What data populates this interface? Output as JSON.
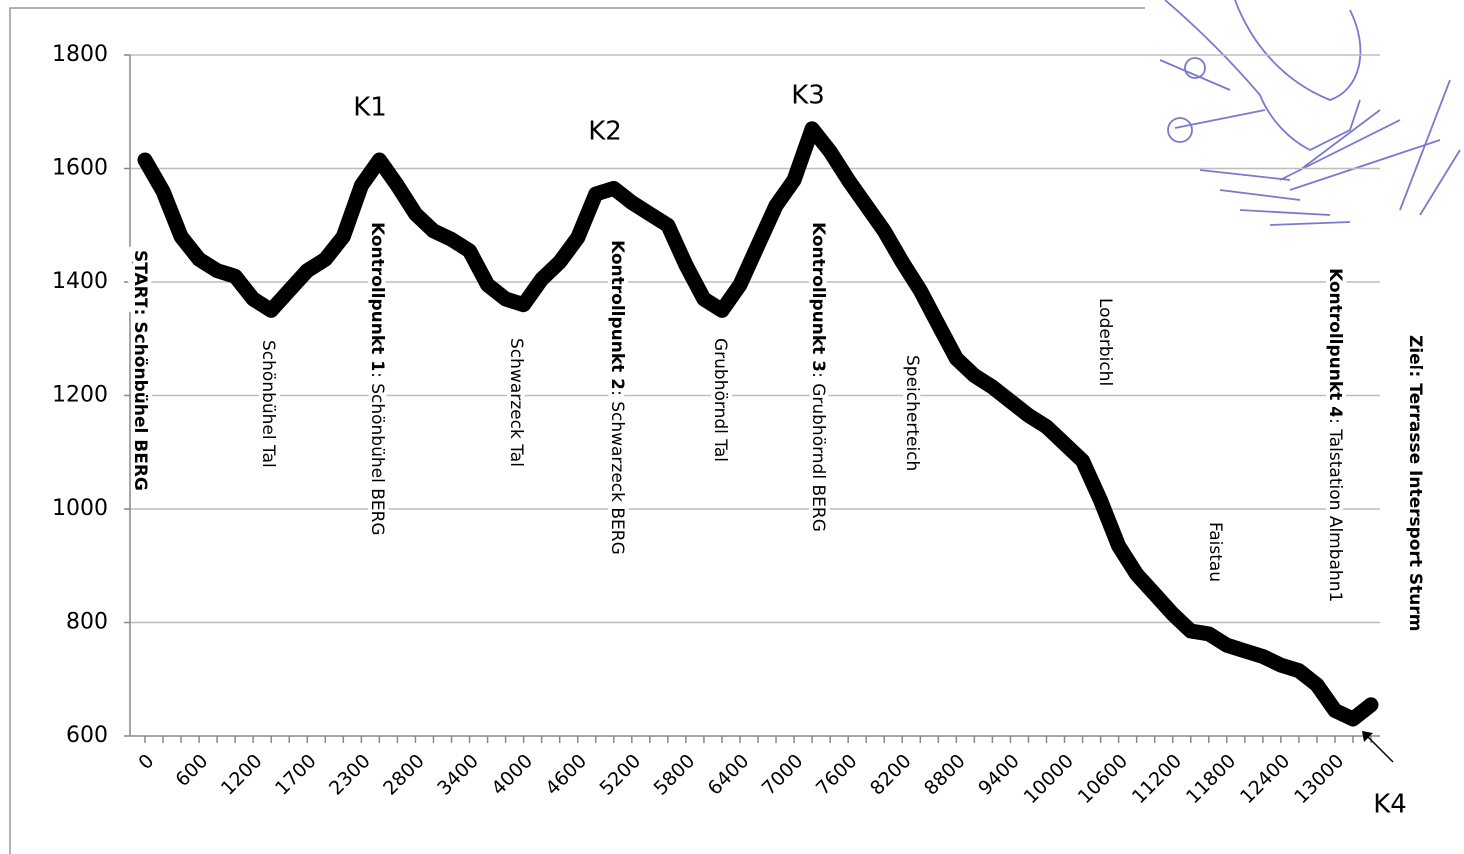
{
  "chart_data": {
    "type": "line",
    "categories": [
      "0",
      null,
      null,
      "600",
      null,
      null,
      "1200",
      null,
      null,
      "1700",
      null,
      null,
      "2300",
      null,
      null,
      "2800",
      null,
      null,
      "3400",
      null,
      null,
      "4000",
      null,
      null,
      "4600",
      null,
      null,
      "5200",
      null,
      null,
      "5800",
      null,
      null,
      "6400",
      null,
      null,
      "7000",
      null,
      null,
      "7600",
      null,
      null,
      "8200",
      null,
      null,
      "8800",
      null,
      null,
      "9400",
      null,
      null,
      "10000",
      null,
      null,
      "10600",
      null,
      null,
      "11200",
      null,
      null,
      "11800",
      null,
      null,
      "12400",
      null,
      null,
      "13000",
      null,
      null
    ],
    "series": [
      {
        "color": "#000000",
        "values": [
          1615,
          1560,
          1480,
          1440,
          1420,
          1410,
          1370,
          1350,
          1385,
          1420,
          1440,
          1480,
          1570,
          1615,
          1570,
          1520,
          1490,
          1475,
          1455,
          1395,
          1370,
          1360,
          1405,
          1435,
          1478,
          1555,
          1565,
          1540,
          1520,
          1500,
          1430,
          1370,
          1350,
          1395,
          1465,
          1535,
          1580,
          1670,
          1630,
          1580,
          1535,
          1490,
          1435,
          1385,
          1325,
          1265,
          1235,
          1215,
          1190,
          1165,
          1145,
          1115,
          1085,
          1015,
          935,
          885,
          850,
          815,
          785,
          780,
          760,
          750,
          740,
          725,
          715,
          690,
          645,
          630,
          655
        ]
      }
    ],
    "ylim": [
      600,
      1800
    ],
    "yticks": [
      600,
      800,
      1000,
      1200,
      1400,
      1600,
      1800
    ],
    "grid": true,
    "checkpoints": [
      "K1",
      "K2",
      "K3",
      "K4"
    ],
    "annotations": [
      {
        "lead": "START",
        "text": ": Schönbühel BERG"
      },
      {
        "text": "Schönbühel Tal"
      },
      {
        "lead": "Kontrollpunkt 1",
        "text": ": Schönbühel BERG"
      },
      {
        "text": "Schwarzeck Tal"
      },
      {
        "lead": "Kontrollpunkt 2",
        "text": ": Schwarzeck BERG"
      },
      {
        "text": "Grubhörndl Tal"
      },
      {
        "lead": "Kontrollpunkt 3",
        "text": ": Grubhörndl BERG"
      },
      {
        "text": "Speicherteich"
      },
      {
        "text": "Loderbichl"
      },
      {
        "text": "Faistau"
      },
      {
        "lead": "Kontrollpunkt 4",
        "text": ": Talstation Almbahn1"
      },
      {
        "lead": "Ziel",
        "text": ": Terrasse Intersport Sturm"
      }
    ]
  }
}
